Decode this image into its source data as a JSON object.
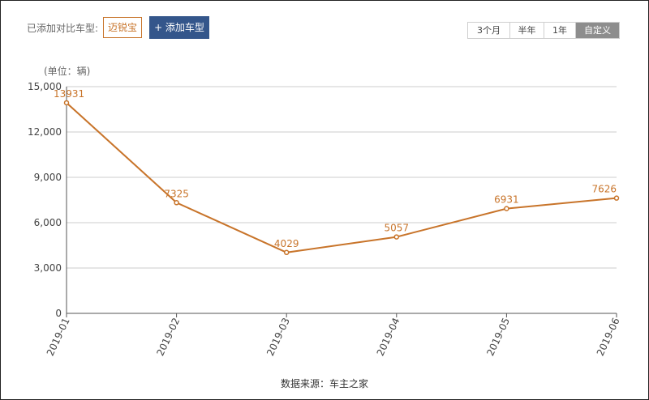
{
  "compare": {
    "label": "已添加对比车型:",
    "car": "迈锐宝",
    "add_button": "+ 添加车型"
  },
  "range_tabs": [
    {
      "label": "3个月",
      "active": false
    },
    {
      "label": "半年",
      "active": false
    },
    {
      "label": "1年",
      "active": false
    },
    {
      "label": "自定义",
      "active": true
    }
  ],
  "source": "数据来源：车主之家",
  "colors": {
    "line": "#c8742a",
    "grid": "#cccccc",
    "axis": "#555555"
  },
  "chart_data": {
    "type": "line",
    "unit_label": "(单位：辆)",
    "x": [
      "2019-01",
      "2019-02",
      "2019-03",
      "2019-04",
      "2019-05",
      "2019-06"
    ],
    "values": [
      13931,
      7325,
      4029,
      5057,
      6931,
      7626
    ],
    "yticks": [
      "0",
      "3,000",
      "6,000",
      "9,000",
      "12,000",
      "15,000"
    ],
    "ylim": [
      0,
      15000
    ],
    "grid": true,
    "data_labels": true
  }
}
